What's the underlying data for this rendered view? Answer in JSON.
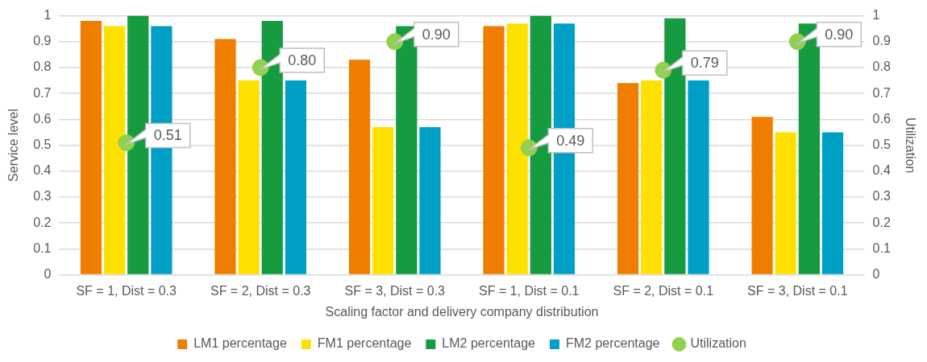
{
  "chart_data": {
    "type": "bar",
    "xlabel": "Scaling factor and delivery company distribution",
    "ylabel": "Service level",
    "y2label": "Utilization",
    "categories": [
      "SF = 1, Dist = 0.3",
      "SF = 2, Dist = 0.3",
      "SF = 3, Dist = 0.3",
      "SF = 1, Dist = 0.1",
      "SF = 2, Dist = 0.1",
      "SF = 3, Dist = 0.1"
    ],
    "series": [
      {
        "name": "LM1 percentage",
        "color": "#ef7d00",
        "values": [
          0.98,
          0.91,
          0.83,
          0.96,
          0.74,
          0.61
        ]
      },
      {
        "name": "FM1 percentage",
        "color": "#ffe100",
        "values": [
          0.96,
          0.75,
          0.57,
          0.97,
          0.75,
          0.55
        ]
      },
      {
        "name": "LM2 percentage",
        "color": "#169b41",
        "values": [
          1.0,
          0.98,
          0.96,
          1.0,
          0.99,
          0.97
        ]
      },
      {
        "name": "FM2 percentage",
        "color": "#00a0c6",
        "values": [
          0.96,
          0.75,
          0.57,
          0.97,
          0.75,
          0.55
        ]
      },
      {
        "name": "Utilization",
        "type": "scatter",
        "axis": "y2",
        "marker": "circle",
        "color": "#92d050",
        "values": [
          0.51,
          0.8,
          0.9,
          0.49,
          0.79,
          0.9
        ],
        "value_labels": [
          "0.51",
          "0.80",
          "0.90",
          "0.49",
          "0.79",
          "0.90"
        ]
      }
    ],
    "ylim": [
      0,
      1
    ],
    "yticks": [
      0,
      0.1,
      0.2,
      0.3,
      0.4,
      0.5,
      0.6,
      0.7,
      0.8,
      0.9,
      1
    ],
    "y2lim": [
      0,
      1
    ],
    "y2ticks": [
      0,
      0.1,
      0.2,
      0.3,
      0.4,
      0.5,
      0.6,
      0.7,
      0.8,
      0.9,
      1
    ],
    "grid": "y",
    "legend": "bottom"
  }
}
